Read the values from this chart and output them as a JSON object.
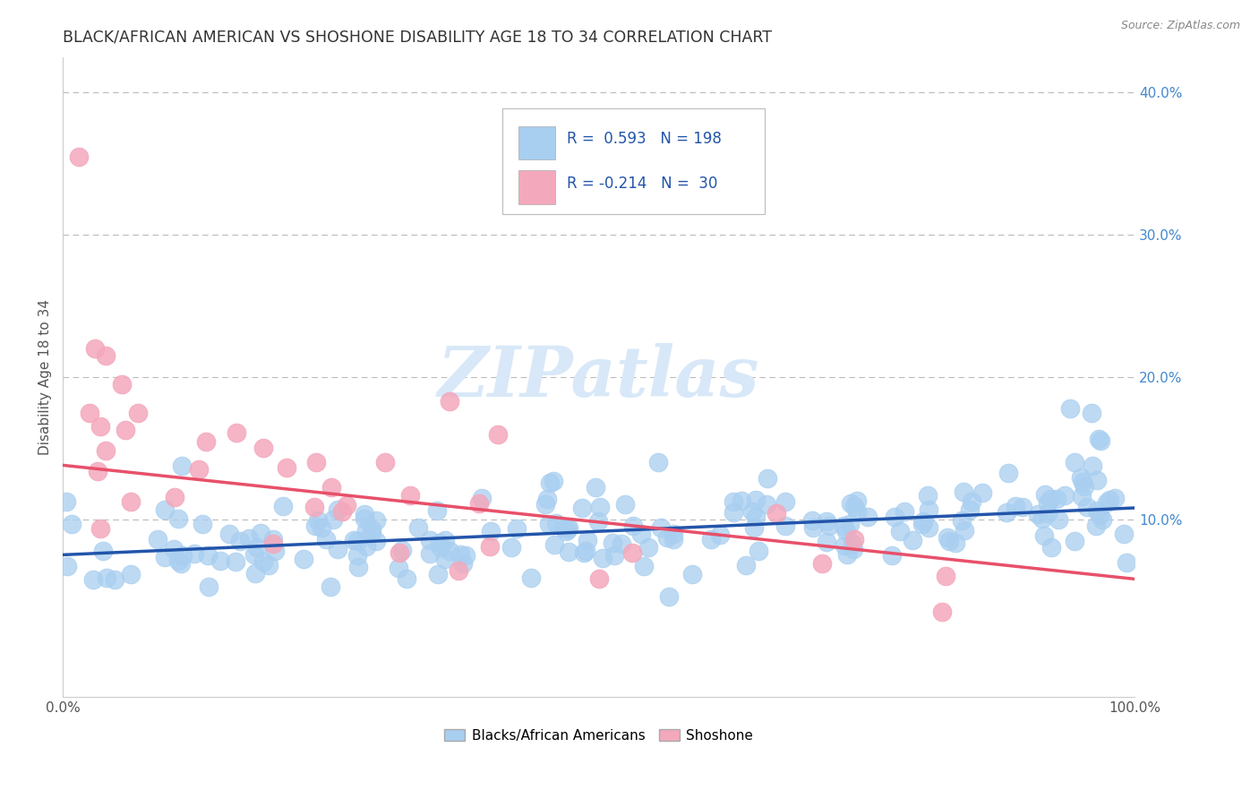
{
  "title": "BLACK/AFRICAN AMERICAN VS SHOSHONE DISABILITY AGE 18 TO 34 CORRELATION CHART",
  "source": "Source: ZipAtlas.com",
  "ylabel": "Disability Age 18 to 34",
  "xlim": [
    0.0,
    1.0
  ],
  "ylim": [
    -0.025,
    0.425
  ],
  "legend_label1": "Blacks/African Americans",
  "legend_label2": "Shoshone",
  "r1": 0.593,
  "n1": 198,
  "r2": -0.214,
  "n2": 30,
  "blue_color": "#A8CEF0",
  "pink_color": "#F4A8BC",
  "blue_line_color": "#2255AA",
  "pink_line_color": "#E8506A",
  "title_color": "#333333",
  "watermark_color": "#D8E8F8",
  "right_tick_color": "#4488CC",
  "background_color": "#FFFFFF",
  "grid_color": "#BBBBBB",
  "blue_line_start_y": 0.075,
  "blue_line_end_y": 0.108,
  "pink_line_start_y": 0.138,
  "pink_line_end_y": 0.058
}
